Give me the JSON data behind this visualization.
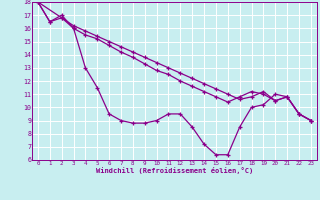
{
  "xlabel": "Windchill (Refroidissement éolien,°C)",
  "bg_color": "#c8eef0",
  "line_color": "#8b008b",
  "grid_color": "#ffffff",
  "xlim": [
    -0.5,
    23.5
  ],
  "ylim": [
    6,
    18
  ],
  "xticks": [
    0,
    1,
    2,
    3,
    4,
    5,
    6,
    7,
    8,
    9,
    10,
    11,
    12,
    13,
    14,
    15,
    16,
    17,
    18,
    19,
    20,
    21,
    22,
    23
  ],
  "yticks": [
    6,
    7,
    8,
    9,
    10,
    11,
    12,
    13,
    14,
    15,
    16,
    17,
    18
  ],
  "line1_x": [
    0,
    1,
    2,
    3,
    4,
    5,
    6,
    7,
    8,
    9,
    10,
    11,
    12,
    13,
    14,
    15,
    16,
    17,
    18,
    19,
    20,
    21,
    22,
    23
  ],
  "line1_y": [
    18.0,
    16.5,
    17.0,
    16.0,
    13.0,
    11.5,
    9.5,
    9.0,
    8.8,
    8.8,
    9.0,
    9.5,
    9.5,
    8.5,
    7.2,
    6.4,
    6.4,
    8.5,
    10.0,
    10.2,
    11.0,
    10.8,
    9.5,
    9.0
  ],
  "line2_x": [
    0,
    1,
    2,
    3,
    4,
    5,
    6,
    7,
    8,
    9,
    10,
    11,
    12,
    13,
    14,
    15,
    16,
    17,
    18,
    19,
    20,
    21,
    22,
    23
  ],
  "line2_y": [
    18.0,
    16.5,
    16.8,
    16.0,
    15.5,
    15.2,
    14.7,
    14.2,
    13.8,
    13.3,
    12.8,
    12.5,
    12.0,
    11.6,
    11.2,
    10.8,
    10.4,
    10.8,
    11.2,
    11.0,
    10.5,
    10.8,
    9.5,
    9.0
  ],
  "line3_x": [
    0,
    2,
    3,
    4,
    5,
    6,
    7,
    8,
    9,
    10,
    11,
    12,
    13,
    14,
    15,
    16,
    17,
    18,
    19,
    20,
    21,
    22,
    23
  ],
  "line3_y": [
    18.0,
    16.8,
    16.2,
    15.8,
    15.4,
    15.0,
    14.6,
    14.2,
    13.8,
    13.4,
    13.0,
    12.6,
    12.2,
    11.8,
    11.4,
    11.0,
    10.6,
    10.8,
    11.2,
    10.5,
    10.8,
    9.5,
    9.0
  ]
}
